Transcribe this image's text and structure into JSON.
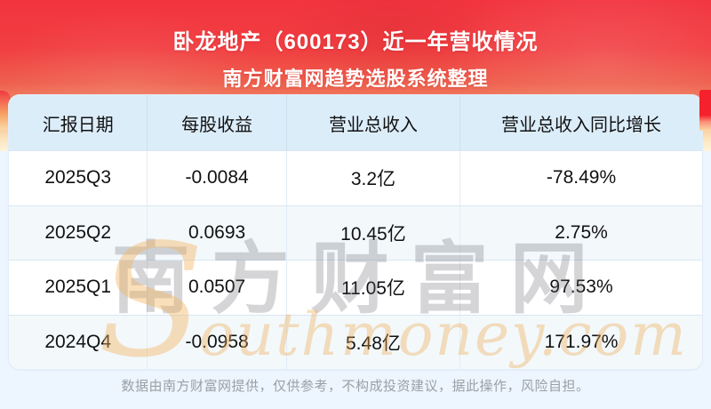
{
  "hero": {
    "title": "卧龙地产（600173）近一年营收情况",
    "subtitle": "南方财富网趋势选股系统整理"
  },
  "table": {
    "headers": [
      "汇报日期",
      "每股收益",
      "营业总收入",
      "营业总收入同比增长"
    ],
    "rows": [
      {
        "date": "2025Q3",
        "eps": "-0.0084",
        "revenue": "3.2亿",
        "yoy": "-78.49%"
      },
      {
        "date": "2025Q2",
        "eps": "0.0693",
        "revenue": "10.45亿",
        "yoy": "2.75%"
      },
      {
        "date": "2025Q1",
        "eps": "0.0507",
        "revenue": "11.05亿",
        "yoy": "97.53%"
      },
      {
        "date": "2024Q4",
        "eps": "-0.0958",
        "revenue": "5.48亿",
        "yoy": "171.97%"
      }
    ]
  },
  "watermark": {
    "cn": "南方财富网",
    "en_initial": "S",
    "en_rest": "outhmoney.com"
  },
  "footer": {
    "disclaimer": "数据由南方财富网提供，仅供参考，不构成投资建议，据此操作，风险自担。"
  },
  "colors": {
    "hero_red_top": "#f2343f",
    "hero_cream_bottom": "#fdf4da",
    "page_background": "#edf5fe",
    "table_header_bg": "#dcedfa",
    "row_alternate_bg": "#f3f8fb",
    "ribbon_red": "#f5212d",
    "cell_text": "#111111",
    "footer_text": "#9aa0a6"
  },
  "chart_data": {
    "type": "table",
    "title": "卧龙地产（600173）近一年营收情况",
    "subtitle": "南方财富网趋势选股系统整理",
    "columns": [
      "汇报日期",
      "每股收益",
      "营业总收入",
      "营业总收入同比增长"
    ],
    "rows": [
      [
        "2025Q3",
        "-0.0084",
        "3.2亿",
        "-78.49%"
      ],
      [
        "2025Q2",
        "0.0693",
        "10.45亿",
        "2.75%"
      ],
      [
        "2025Q1",
        "0.0507",
        "11.05亿",
        "97.53%"
      ],
      [
        "2024Q4",
        "-0.0958",
        "5.48亿",
        "171.97%"
      ]
    ],
    "series": [
      {
        "name": "每股收益",
        "values": [
          -0.0084,
          0.0693,
          0.0507,
          -0.0958
        ]
      },
      {
        "name": "营业总收入(亿)",
        "values": [
          3.2,
          10.45,
          11.05,
          5.48
        ]
      },
      {
        "name": "营业总收入同比增长(%)",
        "values": [
          -78.49,
          2.75,
          97.53,
          171.97
        ]
      }
    ],
    "categories": [
      "2025Q3",
      "2025Q2",
      "2025Q1",
      "2024Q4"
    ],
    "source_note": "数据由南方财富网提供，仅供参考，不构成投资建议，据此操作，风险自担。"
  }
}
